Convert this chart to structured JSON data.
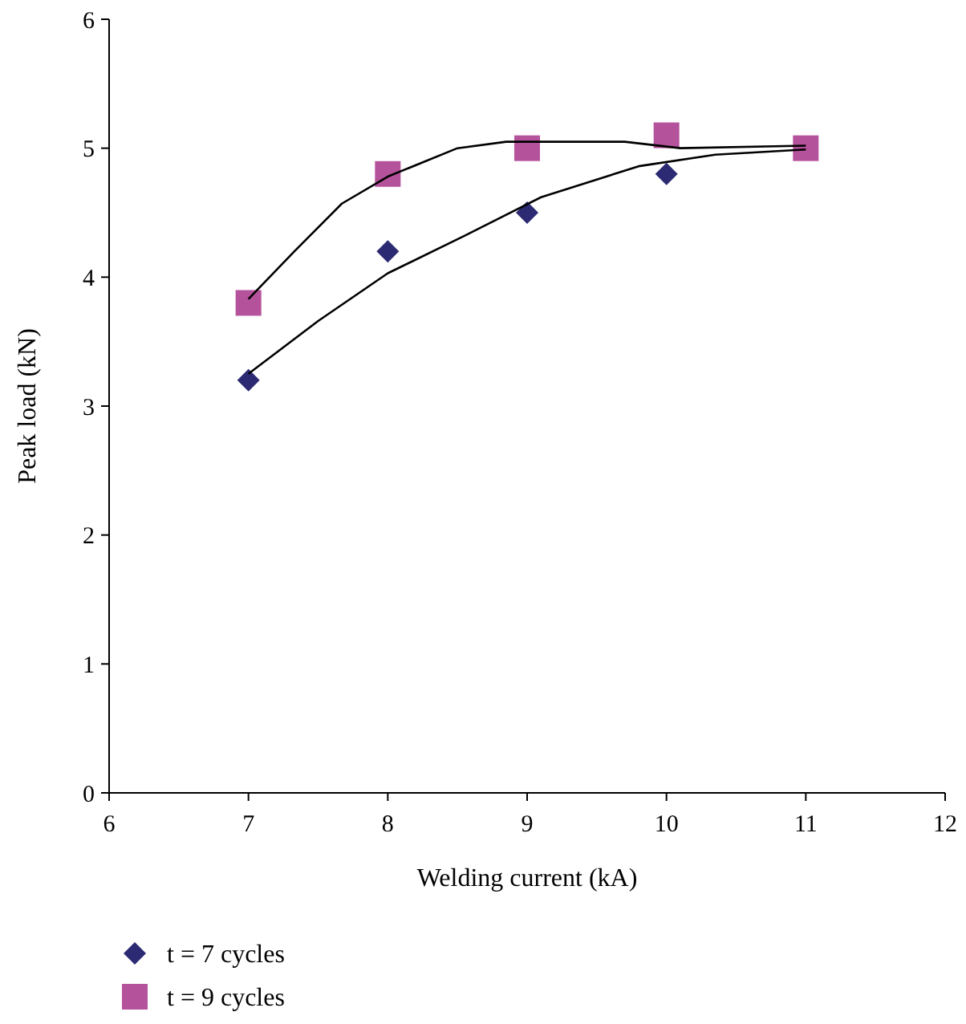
{
  "chart_data": {
    "type": "scatter",
    "xlabel": "Welding current (kA)",
    "ylabel": "Peak load (kN)",
    "xlim": [
      6,
      12
    ],
    "xticks": [
      6,
      7,
      8,
      9,
      10,
      11,
      12
    ],
    "ylim": [
      0,
      6
    ],
    "yticks": [
      0,
      1,
      2,
      3,
      4,
      5,
      6
    ],
    "grid": false,
    "legend": "bottom left",
    "series": [
      {
        "name": "t = 7 cycles",
        "color": "#2b2a73",
        "marker": "diamond",
        "x": [
          7,
          8,
          9,
          10
        ],
        "values": [
          3.2,
          4.2,
          4.5,
          4.8
        ]
      },
      {
        "name": "t = 9 cycles",
        "color": "#b5529c",
        "marker": "square",
        "x": [
          7,
          8,
          9,
          10,
          11
        ],
        "values": [
          3.8,
          4.8,
          5.0,
          5.1,
          5.0
        ]
      },
      {
        "type": "line",
        "color": "#000000",
        "marker": "none",
        "x": [
          7.0,
          7.33,
          7.67,
          8.0,
          8.5,
          8.85,
          9.7,
          10.1,
          11.0
        ],
        "values": [
          3.83,
          4.2,
          4.57,
          4.78,
          5.0,
          5.05,
          5.05,
          5.0,
          5.02
        ]
      },
      {
        "type": "line",
        "color": "#000000",
        "marker": "none",
        "x": [
          7.0,
          7.5,
          8.0,
          8.55,
          9.1,
          9.8,
          10.35,
          11.0
        ],
        "values": [
          3.25,
          3.66,
          4.03,
          4.32,
          4.62,
          4.86,
          4.95,
          4.99
        ]
      }
    ]
  }
}
